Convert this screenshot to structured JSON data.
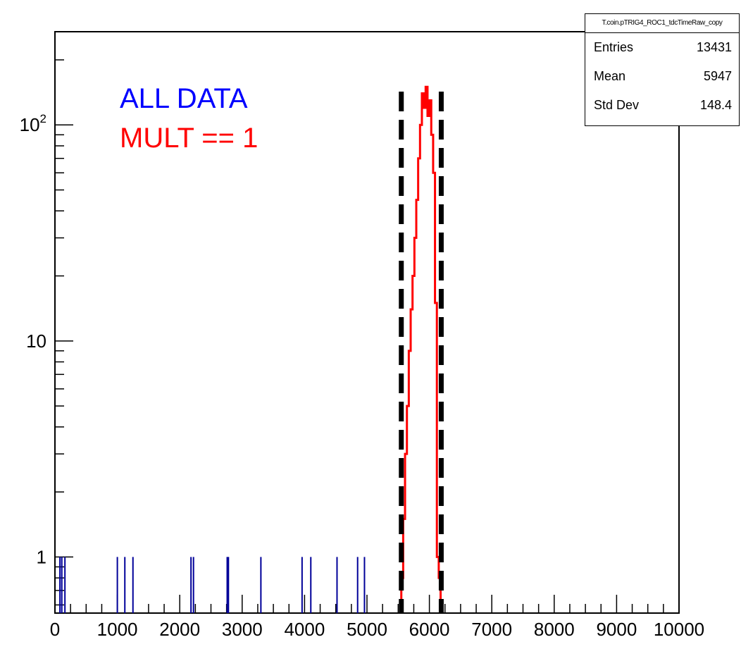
{
  "chart_data": {
    "type": "histogram",
    "title": "",
    "xlabel": "",
    "ylabel": "",
    "xlim": [
      0,
      10000
    ],
    "ylim": [
      0.55,
      270
    ],
    "yscale": "log",
    "grid": false,
    "x_tick_labels": [
      "0",
      "1000",
      "2000",
      "3000",
      "4000",
      "5000",
      "6000",
      "7000",
      "8000",
      "9000",
      "10000"
    ],
    "y_tick_labels": [
      "1",
      "10",
      "10^2"
    ],
    "annotations": [
      {
        "text": "ALL DATA",
        "color": "#0000ff"
      },
      {
        "text": "MULT == 1",
        "color": "#ff0000"
      }
    ],
    "series": [
      {
        "name": "ALL DATA",
        "color": "#000099",
        "style": "isolated single-count bins",
        "x": [
          80,
          110,
          160,
          1000,
          1120,
          1250,
          2180,
          2220,
          2760,
          2780,
          3300,
          3960,
          4100,
          4520,
          4850,
          4960
        ],
        "values": [
          1,
          1,
          1,
          1,
          1,
          1,
          1,
          1,
          1,
          1,
          1,
          1,
          1,
          1,
          1,
          1
        ]
      },
      {
        "name": "MULT == 1",
        "color": "#ff0000",
        "style": "step histogram",
        "x": [
          5550,
          5580,
          5610,
          5640,
          5670,
          5700,
          5730,
          5760,
          5790,
          5820,
          5850,
          5880,
          5910,
          5940,
          5970,
          6000,
          6030,
          6060,
          6090,
          6120,
          6150
        ],
        "values": [
          0.8,
          1.5,
          3,
          5,
          9,
          14,
          20,
          30,
          45,
          70,
          100,
          140,
          120,
          150,
          110,
          130,
          90,
          60,
          15,
          1,
          0.8
        ]
      }
    ],
    "cut_lines": {
      "style": "dashed",
      "color": "#000000",
      "x": [
        5550,
        6190
      ]
    },
    "stats_box": {
      "title": "T.coin.pTRIG4_ROC1_tdcTimeRaw_copy",
      "rows": [
        {
          "label": "Entries",
          "value": "13431"
        },
        {
          "label": "Mean",
          "value": "5947"
        },
        {
          "label": "Std Dev",
          "value": "148.4"
        }
      ]
    }
  }
}
